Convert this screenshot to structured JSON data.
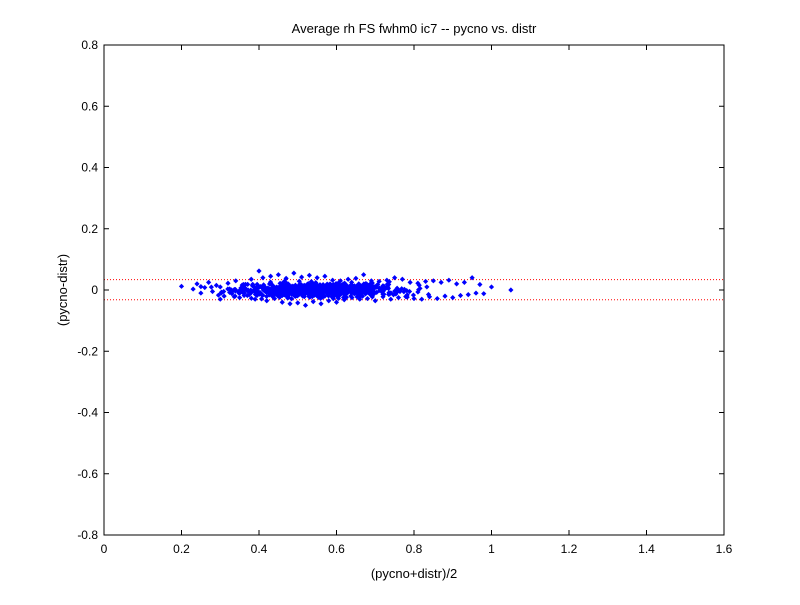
{
  "chart_data": {
    "type": "scatter",
    "title": "Average rh FS fwhm0 ic7 -- pycno vs. distr",
    "xlabel": "(pycno+distr)/2",
    "ylabel": "(pycno-distr)",
    "xlim": [
      0,
      1.6
    ],
    "ylim": [
      -0.8,
      0.8
    ],
    "xticks": [
      "0",
      "0.2",
      "0.4",
      "0.6",
      "0.8",
      "1",
      "1.2",
      "1.4",
      "1.6"
    ],
    "yticks": [
      "-0.8",
      "-0.6",
      "-0.4",
      "-0.2",
      "0",
      "0.2",
      "0.4",
      "0.6",
      "0.8"
    ],
    "grid": false,
    "point_color": "#0000ff",
    "reference_lines": [
      {
        "y": 0.034,
        "color": "#ff0000",
        "style": "dotted"
      },
      {
        "y": -0.032,
        "color": "#ff0000",
        "style": "dotted"
      }
    ],
    "point_summary": {
      "count": 900,
      "x_range": [
        0.2,
        1.05
      ],
      "x_center": 0.55,
      "y_center": 0.0,
      "y_spread": 0.015
    },
    "series": [
      {
        "points": [
          [
            0.2,
            0.012
          ],
          [
            0.23,
            0.003
          ],
          [
            0.24,
            0.02
          ],
          [
            0.25,
            -0.01
          ],
          [
            0.26,
            0.008
          ],
          [
            0.27,
            0.025
          ],
          [
            0.28,
            -0.005
          ],
          [
            0.29,
            0.015
          ],
          [
            0.3,
            -0.03
          ],
          [
            0.3,
            0.01
          ],
          [
            0.31,
            -0.02
          ],
          [
            0.32,
            0.022
          ],
          [
            0.33,
            -0.012
          ],
          [
            0.34,
            0.03
          ],
          [
            0.35,
            -0.025
          ],
          [
            0.36,
            0.018
          ],
          [
            0.37,
            -0.018
          ],
          [
            0.38,
            0.035
          ],
          [
            0.39,
            -0.03
          ],
          [
            0.4,
            0.062
          ],
          [
            0.41,
            0.04
          ],
          [
            0.42,
            -0.035
          ],
          [
            0.43,
            0.045
          ],
          [
            0.44,
            -0.028
          ],
          [
            0.45,
            0.05
          ],
          [
            0.46,
            -0.04
          ],
          [
            0.47,
            0.038
          ],
          [
            0.48,
            -0.045
          ],
          [
            0.49,
            0.055
          ],
          [
            0.5,
            -0.042
          ],
          [
            0.51,
            0.042
          ],
          [
            0.52,
            -0.05
          ],
          [
            0.53,
            0.048
          ],
          [
            0.54,
            -0.038
          ],
          [
            0.55,
            0.04
          ],
          [
            0.56,
            -0.045
          ],
          [
            0.57,
            0.045
          ],
          [
            0.58,
            -0.035
          ],
          [
            0.59,
            0.032
          ],
          [
            0.6,
            -0.04
          ],
          [
            0.61,
            0.03
          ],
          [
            0.62,
            -0.032
          ],
          [
            0.63,
            0.035
          ],
          [
            0.64,
            -0.025
          ],
          [
            0.65,
            0.038
          ],
          [
            0.66,
            -0.03
          ],
          [
            0.67,
            0.05
          ],
          [
            0.68,
            -0.028
          ],
          [
            0.69,
            0.03
          ],
          [
            0.7,
            -0.035
          ],
          [
            0.71,
            0.028
          ],
          [
            0.72,
            -0.022
          ],
          [
            0.73,
            0.032
          ],
          [
            0.74,
            -0.03
          ],
          [
            0.75,
            0.04
          ],
          [
            0.76,
            -0.025
          ],
          [
            0.77,
            0.035
          ],
          [
            0.78,
            -0.02
          ],
          [
            0.79,
            0.025
          ],
          [
            0.8,
            -0.028
          ],
          [
            0.81,
            0.022
          ],
          [
            0.82,
            -0.03
          ],
          [
            0.83,
            0.028
          ],
          [
            0.84,
            -0.022
          ],
          [
            0.85,
            0.03
          ],
          [
            0.86,
            -0.028
          ],
          [
            0.87,
            0.025
          ],
          [
            0.88,
            -0.02
          ],
          [
            0.89,
            0.032
          ],
          [
            0.9,
            -0.025
          ],
          [
            0.91,
            0.02
          ],
          [
            0.92,
            -0.018
          ],
          [
            0.93,
            0.025
          ],
          [
            0.94,
            -0.015
          ],
          [
            0.95,
            0.04
          ],
          [
            0.96,
            -0.01
          ],
          [
            0.97,
            0.018
          ],
          [
            0.98,
            -0.012
          ],
          [
            1.0,
            0.01
          ],
          [
            1.05,
            0.0
          ]
        ]
      }
    ]
  }
}
